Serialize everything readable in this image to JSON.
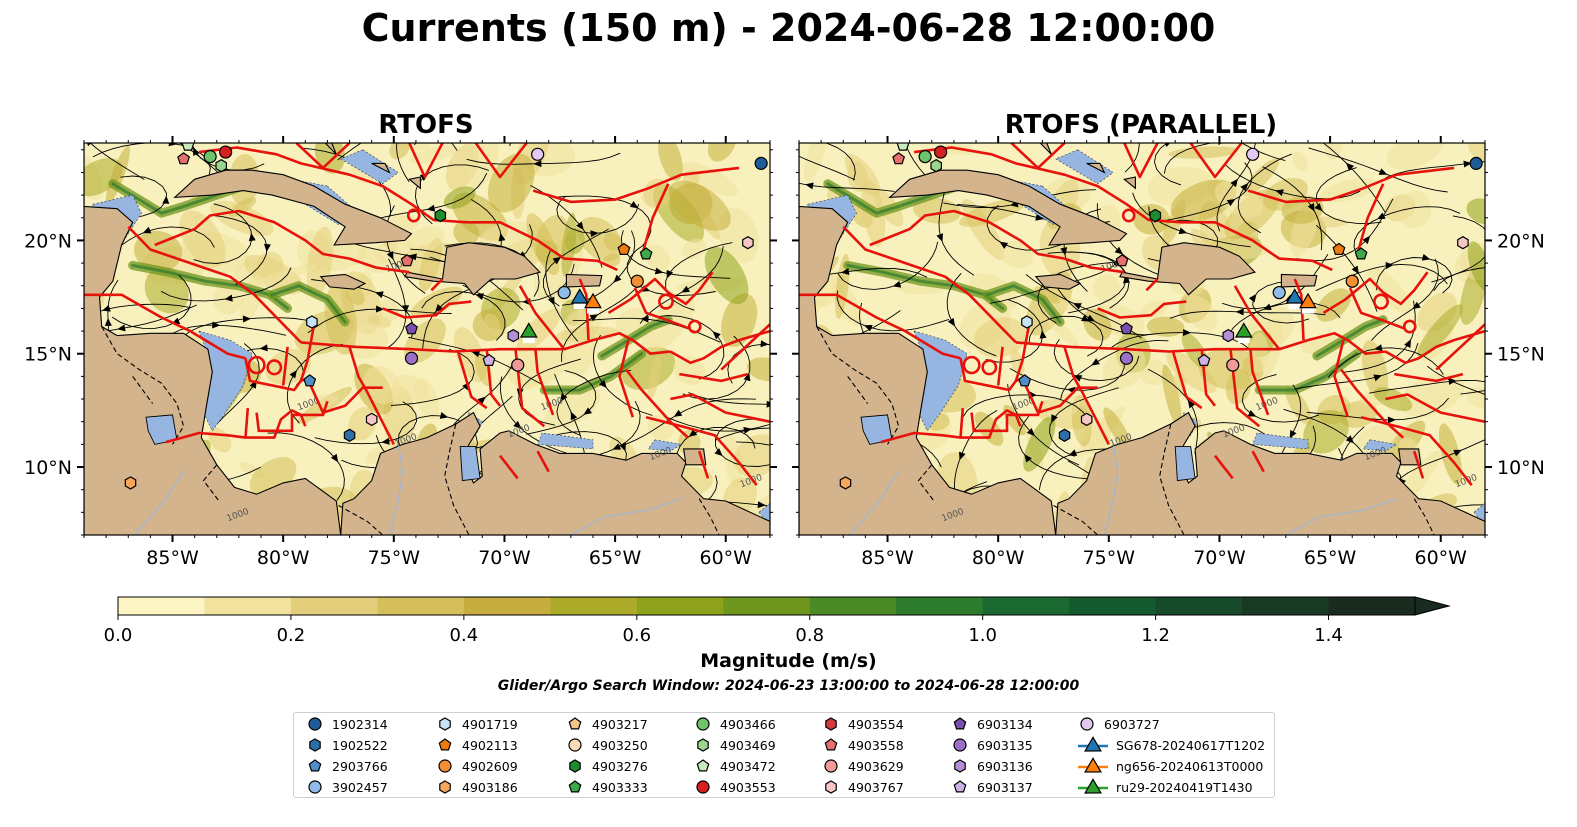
{
  "title": "Currents (150 m) - 2024-06-28 12:00:00",
  "panels": [
    {
      "name": "rtofs",
      "title": "RTOFS",
      "lat_ticks_side": "left"
    },
    {
      "name": "rtofs-parallel",
      "title": "RTOFS (PARALLEL)",
      "lat_ticks_side": "right"
    }
  ],
  "map": {
    "lon_range": [
      -89,
      -58
    ],
    "lat_range": [
      7,
      24.3
    ],
    "lon_ticks": [
      "85°W",
      "80°W",
      "75°W",
      "70°W",
      "65°W",
      "60°W"
    ],
    "lat_ticks": [
      "10°N",
      "15°N",
      "20°N"
    ],
    "contour_label": "1000",
    "colors": {
      "ocean_deep": "#f9f1bd",
      "land": "#d3b48c",
      "shelf": "#96b5e0",
      "eez": "#e8120d",
      "streamline": "#000000"
    }
  },
  "colorbar": {
    "label": "Magnitude (m/s)",
    "tick_labels": [
      "0.0",
      "0.2",
      "0.4",
      "0.6",
      "0.8",
      "1.0",
      "1.2",
      "1.4"
    ],
    "range": [
      0,
      1.5
    ],
    "extend": "max",
    "colors": [
      "#fdf6c4",
      "#f1e29e",
      "#e3cf7b",
      "#d4bf5a",
      "#c5ae3e",
      "#acac2a",
      "#8fa21c",
      "#6f961f",
      "#4b8a25",
      "#2d7b2d",
      "#1a6a31",
      "#165a2f",
      "#174a2b",
      "#183a25",
      "#1a2c1f"
    ]
  },
  "search_window": "Glider/Argo Search Window: 2024-06-23 13:00:00 to 2024-06-28 12:00:00",
  "legend": [
    {
      "label": "1902314",
      "shape": "circle",
      "color": "#1f5c99"
    },
    {
      "label": "1902522",
      "shape": "hexagon",
      "color": "#2b6ea8"
    },
    {
      "label": "2903766",
      "shape": "pentagon",
      "color": "#4f8ec9"
    },
    {
      "label": "3902457",
      "shape": "circle",
      "color": "#8fbce8"
    },
    {
      "label": "4901719",
      "shape": "hexagon",
      "color": "#c7e3f7"
    },
    {
      "label": "4902113",
      "shape": "pentagon",
      "color": "#ee7a10"
    },
    {
      "label": "4902609",
      "shape": "circle",
      "color": "#f58f35"
    },
    {
      "label": "4903186",
      "shape": "hexagon",
      "color": "#f7a75c"
    },
    {
      "label": "4903217",
      "shape": "pentagon",
      "color": "#f9c38c"
    },
    {
      "label": "4903250",
      "shape": "circle",
      "color": "#fcdcb8"
    },
    {
      "label": "4903276",
      "shape": "hexagon",
      "color": "#1e8c2e"
    },
    {
      "label": "4903333",
      "shape": "pentagon",
      "color": "#3ea84a"
    },
    {
      "label": "4903466",
      "shape": "circle",
      "color": "#6fc36b"
    },
    {
      "label": "4903469",
      "shape": "hexagon",
      "color": "#9bd68f"
    },
    {
      "label": "4903472",
      "shape": "pentagon",
      "color": "#c9ecbf"
    },
    {
      "label": "4903553",
      "shape": "circle",
      "color": "#d62020"
    },
    {
      "label": "4903554",
      "shape": "hexagon",
      "color": "#d23b3b"
    },
    {
      "label": "4903558",
      "shape": "pentagon",
      "color": "#e66f6f"
    },
    {
      "label": "4903629",
      "shape": "circle",
      "color": "#f19a9a"
    },
    {
      "label": "4903767",
      "shape": "hexagon",
      "color": "#f9c6c6"
    },
    {
      "label": "6903134",
      "shape": "pentagon",
      "color": "#7a4fb0"
    },
    {
      "label": "6903135",
      "shape": "circle",
      "color": "#9c70c9"
    },
    {
      "label": "6903136",
      "shape": "hexagon",
      "color": "#b48fd6"
    },
    {
      "label": "6903137",
      "shape": "pentagon",
      "color": "#cdb2e6"
    },
    {
      "label": "6903727",
      "shape": "circle",
      "color": "#e1c9f1"
    },
    {
      "label": "SG678-20240617T1202",
      "shape": "triangle",
      "color": "#1f77b4"
    },
    {
      "label": "ng656-20240613T0000",
      "shape": "triangle",
      "color": "#ff7f0e"
    },
    {
      "label": "ru29-20240419T1430",
      "shape": "triangle",
      "color": "#2ca02c"
    }
  ],
  "markers": [
    {
      "label": "1902314",
      "lon": -58.4,
      "lat": 23.4
    },
    {
      "label": "4903472",
      "lon": -84.3,
      "lat": 24.2
    },
    {
      "label": "4903558",
      "lon": -84.5,
      "lat": 23.6
    },
    {
      "label": "4903466",
      "lon": -83.3,
      "lat": 23.7
    },
    {
      "label": "4903553",
      "lon": -82.6,
      "lat": 23.9
    },
    {
      "label": "4903469",
      "lon": -82.8,
      "lat": 23.3
    },
    {
      "label": "4903276",
      "lon": -72.9,
      "lat": 21.1
    },
    {
      "label": "6903727",
      "lon": -68.5,
      "lat": 23.8
    },
    {
      "label": "4902113",
      "lon": -64.6,
      "lat": 19.6
    },
    {
      "label": "4903333",
      "lon": -63.6,
      "lat": 19.4
    },
    {
      "label": "4903767",
      "lon": -59.0,
      "lat": 19.9
    },
    {
      "label": "4903558",
      "lon": -74.4,
      "lat": 19.1
    },
    {
      "label": "3902457",
      "lon": -67.3,
      "lat": 17.7
    },
    {
      "label": "4902609",
      "lon": -64.0,
      "lat": 18.2
    },
    {
      "label": "4901719",
      "lon": -78.7,
      "lat": 16.4
    },
    {
      "label": "6903134",
      "lon": -74.2,
      "lat": 16.1
    },
    {
      "label": "6903135",
      "lon": -74.2,
      "lat": 14.8
    },
    {
      "label": "6903136",
      "lon": -69.6,
      "lat": 15.8
    },
    {
      "label": "6903137",
      "lon": -70.7,
      "lat": 14.7
    },
    {
      "label": "4903629",
      "lon": -69.4,
      "lat": 14.5
    },
    {
      "label": "2903766",
      "lon": -78.8,
      "lat": 13.8
    },
    {
      "label": "4903767",
      "lon": -76.0,
      "lat": 12.1
    },
    {
      "label": "1902522",
      "lon": -77.0,
      "lat": 11.4
    },
    {
      "label": "4903186",
      "lon": -86.9,
      "lat": 9.3
    },
    {
      "label": "SG678-20240617T1202",
      "lon": -66.6,
      "lat": 17.5
    },
    {
      "label": "ng656-20240613T0000",
      "lon": -66.0,
      "lat": 17.3
    },
    {
      "label": "ru29-20240419T1430",
      "lon": -68.9,
      "lat": 16.0
    }
  ]
}
